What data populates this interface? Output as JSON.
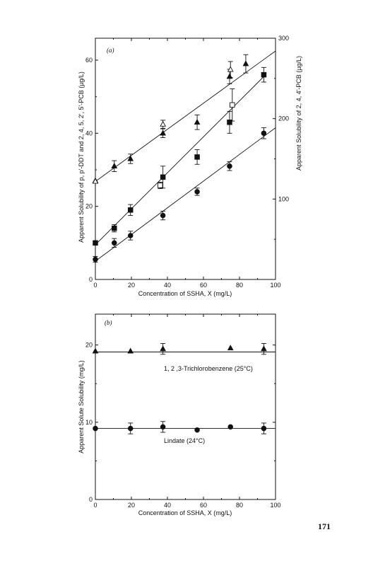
{
  "page_number": "171",
  "chart_data": [
    {
      "type": "scatter",
      "panel_label": "(a)",
      "xlabel": "Concentration of SSHA, X (mg/L)",
      "ylabel": "Apparent Solubility of p, p'-DDT and 2, 4, 5, 2', 5'-PCB (µg/L)",
      "y2label": "Apparent Solubility of 2, 4, 4'-PCB (µg/L)",
      "xlim": [
        0,
        100
      ],
      "ylim": [
        0,
        66
      ],
      "y2lim": [
        0,
        300
      ],
      "xticks": [
        "0",
        "20",
        "40",
        "60",
        "80",
        "100"
      ],
      "yticks": [
        "0",
        "20",
        "40",
        "60"
      ],
      "y2ticks": [
        "100",
        "200",
        "300"
      ],
      "grid": false,
      "series": [
        {
          "marker": "filled-triangle",
          "points": [
            {
              "x": 0,
              "y": 27
            },
            {
              "x": 10.5,
              "y": 31,
              "err": 1.5
            },
            {
              "x": 19.5,
              "y": 33,
              "err": 1.3
            },
            {
              "x": 37.5,
              "y": 40,
              "err": 1.2
            },
            {
              "x": 56.5,
              "y": 43,
              "err": 2
            },
            {
              "x": 74.5,
              "y": 55.5,
              "err": 2
            },
            {
              "x": 83.5,
              "y": 59,
              "err": 2.5
            }
          ],
          "fit": [
            [
              0,
              26.8
            ],
            [
              100,
              62.5
            ]
          ]
        },
        {
          "marker": "filled-square",
          "points": [
            {
              "x": 0,
              "y": 10
            },
            {
              "x": 10.5,
              "y": 14,
              "err": 1
            },
            {
              "x": 19.5,
              "y": 19,
              "err": 1.5
            },
            {
              "x": 37.5,
              "y": 28,
              "err": 3
            },
            {
              "x": 56.5,
              "y": 33.5,
              "err": 2
            },
            {
              "x": 74.5,
              "y": 43,
              "err": 3
            },
            {
              "x": 93.5,
              "y": 56,
              "err": 2
            }
          ],
          "fit": [
            [
              0,
              9.5
            ],
            [
              93.5,
              55.5
            ]
          ]
        },
        {
          "marker": "filled-circle",
          "points": [
            {
              "x": 0,
              "y": 5.5,
              "err": 0.8
            },
            {
              "x": 10.5,
              "y": 10,
              "err": 1.2
            },
            {
              "x": 19.5,
              "y": 12,
              "err": 1.2
            },
            {
              "x": 37.5,
              "y": 17.5,
              "err": 1.2
            },
            {
              "x": 56.5,
              "y": 24,
              "err": 1
            },
            {
              "x": 74.5,
              "y": 31,
              "err": 1.2
            },
            {
              "x": 93.5,
              "y": 40,
              "err": 1.5
            }
          ],
          "fit": [
            [
              0,
              5
            ],
            [
              100,
              41.5
            ]
          ]
        },
        {
          "marker": "open-triangle",
          "axis": "right",
          "points": [
            {
              "x": 0,
              "y": 122
            },
            {
              "x": 37.5,
              "y": 193,
              "err": 5
            },
            {
              "x": 75,
              "y": 261,
              "err": 10
            }
          ]
        },
        {
          "marker": "open-square",
          "axis": "right",
          "points": [
            {
              "x": 36,
              "y": 117,
              "err": 4
            },
            {
              "x": 76,
              "y": 217,
              "err": 20
            }
          ]
        }
      ]
    },
    {
      "type": "scatter",
      "panel_label": "(b)",
      "xlabel": "Concentration of SSHA, X (mg/L)",
      "ylabel": "Apparent Solute Solubility (mg/L)",
      "xlim": [
        0,
        100
      ],
      "ylim": [
        0,
        24
      ],
      "xticks": [
        "0",
        "20",
        "40",
        "60",
        "80",
        "100"
      ],
      "yticks": [
        "0",
        "10",
        "20"
      ],
      "grid": false,
      "series": [
        {
          "name": "1, 2 ,3-Trichlorobenzene (25°C)",
          "marker": "filled-triangle",
          "points": [
            {
              "x": 0,
              "y": 19.2
            },
            {
              "x": 19.5,
              "y": 19.2
            },
            {
              "x": 37.5,
              "y": 19.5,
              "err": 0.7
            },
            {
              "x": 75,
              "y": 19.6
            },
            {
              "x": 93.5,
              "y": 19.5,
              "err": 0.7
            }
          ],
          "fit": [
            [
              0,
              19.1
            ],
            [
              100,
              19.1
            ]
          ]
        },
        {
          "name": "Lindate (24°C)",
          "marker": "filled-circle",
          "points": [
            {
              "x": 0,
              "y": 9.2
            },
            {
              "x": 19.5,
              "y": 9.2,
              "err": 0.7
            },
            {
              "x": 37.5,
              "y": 9.4,
              "err": 0.7
            },
            {
              "x": 56.5,
              "y": 9.0
            },
            {
              "x": 75,
              "y": 9.4
            },
            {
              "x": 93.5,
              "y": 9.2,
              "err": 0.7
            }
          ],
          "fit": [
            [
              0,
              9.2
            ],
            [
              100,
              9.2
            ]
          ]
        }
      ]
    }
  ]
}
